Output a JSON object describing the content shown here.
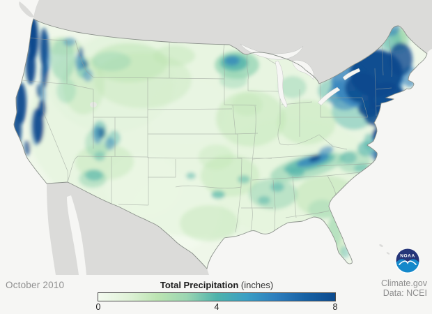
{
  "map": {
    "period_label": "October 2010",
    "source_line1": "Climate.gov",
    "source_line2": "Data: NCEI",
    "noaa_logo_text": "NOAA",
    "region": "Contiguous United States precipitation map",
    "colors": {
      "background": "#f6f6f4",
      "foreign_land": "#dbdbd9",
      "us_base": "#eff7e9",
      "state_border": "#9aa09a",
      "us_outline": "#8a908a",
      "lake_fill": "#f6f6f4",
      "noaa_navy": "#263679",
      "noaa_blue": "#1488ca"
    },
    "precip_blobs": [
      [
        250,
        305,
        65,
        55,
        "pale",
        0.8,
        0
      ],
      [
        205,
        265,
        55,
        45,
        "pale",
        0.6,
        0
      ],
      [
        268,
        160,
        55,
        45,
        "pale",
        0.55,
        0
      ],
      [
        300,
        180,
        260,
        160,
        "g1",
        0.5,
        0
      ],
      [
        420,
        255,
        120,
        85,
        "g1",
        0.45,
        0
      ],
      [
        160,
        120,
        90,
        70,
        "g1",
        0.4,
        0
      ],
      [
        185,
        90,
        55,
        28,
        "g2",
        0.5,
        0
      ],
      [
        250,
        80,
        30,
        15,
        "g2",
        0.4,
        0
      ],
      [
        205,
        115,
        70,
        40,
        "g2",
        0.35,
        0
      ],
      [
        360,
        170,
        50,
        40,
        "g2",
        0.45,
        0
      ],
      [
        440,
        175,
        42,
        32,
        "g2",
        0.45,
        0
      ],
      [
        468,
        282,
        45,
        30,
        "g2",
        0.5,
        0
      ],
      [
        330,
        252,
        42,
        30,
        "g2",
        0.45,
        0
      ],
      [
        120,
        122,
        30,
        42,
        "g2",
        0.4,
        0
      ],
      [
        150,
        232,
        42,
        26,
        "g2",
        0.4,
        0
      ],
      [
        481,
        345,
        14,
        34,
        "g2",
        0.5,
        0
      ],
      [
        300,
        320,
        42,
        26,
        "g2",
        0.4,
        0
      ],
      [
        90,
        66,
        26,
        13,
        "g2",
        0.5,
        0
      ],
      [
        355,
        150,
        22,
        16,
        "g2",
        0.35,
        0
      ],
      [
        573,
        52,
        11,
        13,
        "g2",
        0.85,
        0
      ],
      [
        310,
        225,
        25,
        18,
        "g2",
        0.35,
        0
      ],
      [
        340,
        93,
        32,
        20,
        "g3",
        0.7,
        0
      ],
      [
        420,
        125,
        20,
        16,
        "g3",
        0.45,
        0
      ],
      [
        441,
        239,
        55,
        16,
        "g3",
        0.6,
        -15
      ],
      [
        392,
        278,
        35,
        22,
        "g3",
        0.5,
        0
      ],
      [
        508,
        232,
        24,
        16,
        "g3",
        0.5,
        0
      ],
      [
        90,
        85,
        18,
        30,
        "g3",
        0.55,
        0
      ],
      [
        95,
        130,
        14,
        18,
        "g3",
        0.4,
        0
      ],
      [
        140,
        205,
        18,
        22,
        "g3",
        0.45,
        0
      ],
      [
        133,
        256,
        20,
        13,
        "g3",
        0.5,
        0
      ],
      [
        570,
        57,
        18,
        18,
        "g3",
        0.5,
        0
      ],
      [
        462,
        300,
        20,
        14,
        "g3",
        0.35,
        0
      ],
      [
        480,
        332,
        10,
        24,
        "g3",
        0.4,
        0
      ],
      [
        160,
        88,
        28,
        14,
        "g3",
        0.4,
        0
      ],
      [
        335,
        115,
        20,
        12,
        "g3",
        0.4,
        0
      ],
      [
        336,
        90,
        20,
        12,
        "t",
        0.8,
        0
      ],
      [
        508,
        158,
        32,
        28,
        "t",
        0.45,
        0
      ],
      [
        476,
        130,
        20,
        17,
        "t",
        0.45,
        0
      ],
      [
        444,
        234,
        38,
        10,
        "t",
        0.7,
        -15
      ],
      [
        425,
        247,
        12,
        7,
        "t",
        0.6,
        0
      ],
      [
        398,
        268,
        10,
        7,
        "t",
        0.55,
        0
      ],
      [
        379,
        287,
        9,
        6,
        "t",
        0.5,
        0
      ],
      [
        350,
        257,
        9,
        6,
        "t",
        0.5,
        0
      ],
      [
        313,
        279,
        10,
        6,
        "t",
        0.65,
        0
      ],
      [
        274,
        252,
        7,
        5,
        "t",
        0.5,
        0
      ],
      [
        526,
        213,
        13,
        11,
        "t",
        0.6,
        0
      ],
      [
        500,
        226,
        12,
        9,
        "t",
        0.5,
        0
      ],
      [
        519,
        241,
        11,
        7,
        "t",
        0.45,
        0
      ],
      [
        135,
        251,
        13,
        8,
        "t",
        0.55,
        0
      ],
      [
        143,
        224,
        8,
        7,
        "t",
        0.4,
        0
      ],
      [
        118,
        97,
        9,
        15,
        "t",
        0.45,
        0
      ],
      [
        143,
        186,
        10,
        13,
        "t",
        0.5,
        0
      ],
      [
        164,
        198,
        9,
        11,
        "t",
        0.45,
        0
      ],
      [
        495,
        361,
        7,
        9,
        "t",
        0.4,
        0
      ],
      [
        529,
        204,
        7,
        13,
        "t",
        0.5,
        0
      ],
      [
        560,
        57,
        16,
        16,
        "t",
        0.5,
        0
      ],
      [
        527,
        114,
        52,
        42,
        "b",
        0.75,
        0
      ],
      [
        495,
        136,
        24,
        22,
        "b",
        0.5,
        0
      ],
      [
        588,
        110,
        11,
        15,
        "b",
        0.6,
        0
      ],
      [
        545,
        200,
        12,
        16,
        "b",
        0.55,
        0
      ],
      [
        540,
        222,
        9,
        7,
        "b",
        0.5,
        0
      ],
      [
        449,
        230,
        24,
        7,
        "b",
        0.7,
        -15
      ],
      [
        468,
        216,
        11,
        6,
        "b",
        0.55,
        -20
      ],
      [
        66,
        80,
        6,
        33,
        "b",
        0.7,
        0
      ],
      [
        61,
        135,
        5,
        22,
        "b",
        0.5,
        0
      ],
      [
        52,
        182,
        8,
        27,
        "b",
        0.6,
        0
      ],
      [
        115,
        88,
        7,
        13,
        "b",
        0.5,
        0
      ],
      [
        126,
        108,
        7,
        9,
        "b",
        0.45,
        0
      ],
      [
        140,
        193,
        7,
        13,
        "b",
        0.5,
        0
      ],
      [
        158,
        206,
        7,
        9,
        "b",
        0.45,
        0
      ],
      [
        333,
        87,
        11,
        7,
        "b",
        0.65,
        0
      ],
      [
        100,
        60,
        9,
        6,
        "b",
        0.45,
        0
      ],
      [
        560,
        40,
        14,
        12,
        "b",
        0.55,
        0
      ],
      [
        47,
        55,
        8,
        32,
        "n",
        1,
        0
      ],
      [
        44,
        95,
        7,
        26,
        "n",
        0.95,
        0
      ],
      [
        63,
        68,
        6,
        28,
        "n",
        0.85,
        0
      ],
      [
        64,
        106,
        5,
        20,
        "n",
        0.75,
        0
      ],
      [
        30,
        148,
        8,
        30,
        "n",
        0.95,
        0
      ],
      [
        24,
        185,
        7,
        26,
        "n",
        0.9,
        0
      ],
      [
        39,
        212,
        5,
        11,
        "n",
        0.65,
        0
      ],
      [
        55,
        180,
        8,
        26,
        "n",
        0.9,
        0
      ],
      [
        60,
        156,
        6,
        13,
        "n",
        0.8,
        0
      ],
      [
        540,
        105,
        38,
        34,
        "n",
        0.95,
        0
      ],
      [
        555,
        140,
        27,
        22,
        "n",
        0.95,
        0
      ],
      [
        519,
        126,
        24,
        22,
        "n",
        0.85,
        0
      ],
      [
        575,
        85,
        17,
        24,
        "n",
        0.8,
        0
      ],
      [
        540,
        165,
        18,
        16,
        "n",
        0.85,
        0
      ],
      [
        547,
        186,
        9,
        11,
        "n",
        0.8,
        0
      ],
      [
        539,
        194,
        5,
        9,
        "n",
        0.85,
        0
      ],
      [
        530,
        156,
        16,
        12,
        "n",
        0.9,
        0
      ],
      [
        452,
        227,
        9,
        4,
        "n",
        0.9,
        -20
      ],
      [
        540,
        224,
        3,
        12,
        "n",
        0.7,
        0
      ],
      [
        116,
        75,
        4,
        8,
        "n",
        0.5,
        0
      ],
      [
        122,
        92,
        5,
        6,
        "n",
        0.45,
        0
      ],
      [
        146,
        190,
        5,
        8,
        "n",
        0.5,
        0
      ],
      [
        56,
        130,
        4,
        10,
        "n",
        0.6,
        0
      ]
    ]
  },
  "legend": {
    "title_bold": "Total Precipitation",
    "title_units": "(inches)",
    "ticks": [
      "0",
      "4",
      "8"
    ],
    "min": 0,
    "max": 8,
    "level_colors": {
      "pale": "#f3faee",
      "g1": "#e2f3d9",
      "g2": "#bce4b2",
      "g3": "#8fd1b0",
      "t": "#4fb3ab",
      "b": "#2e7ebd",
      "n": "#0c4a8e"
    },
    "gradient_stops": [
      {
        "v": 0,
        "c": "#f3faef"
      },
      {
        "v": 1,
        "c": "#e0f2d8"
      },
      {
        "v": 2,
        "c": "#bce4b2"
      },
      {
        "v": 3,
        "c": "#9ad5b2"
      },
      {
        "v": 4,
        "c": "#4fb3ab"
      },
      {
        "v": 5,
        "c": "#3a9fc4"
      },
      {
        "v": 6,
        "c": "#2e7ebd"
      },
      {
        "v": 7,
        "c": "#1661a4"
      },
      {
        "v": 8,
        "c": "#0c4a8e"
      }
    ]
  }
}
